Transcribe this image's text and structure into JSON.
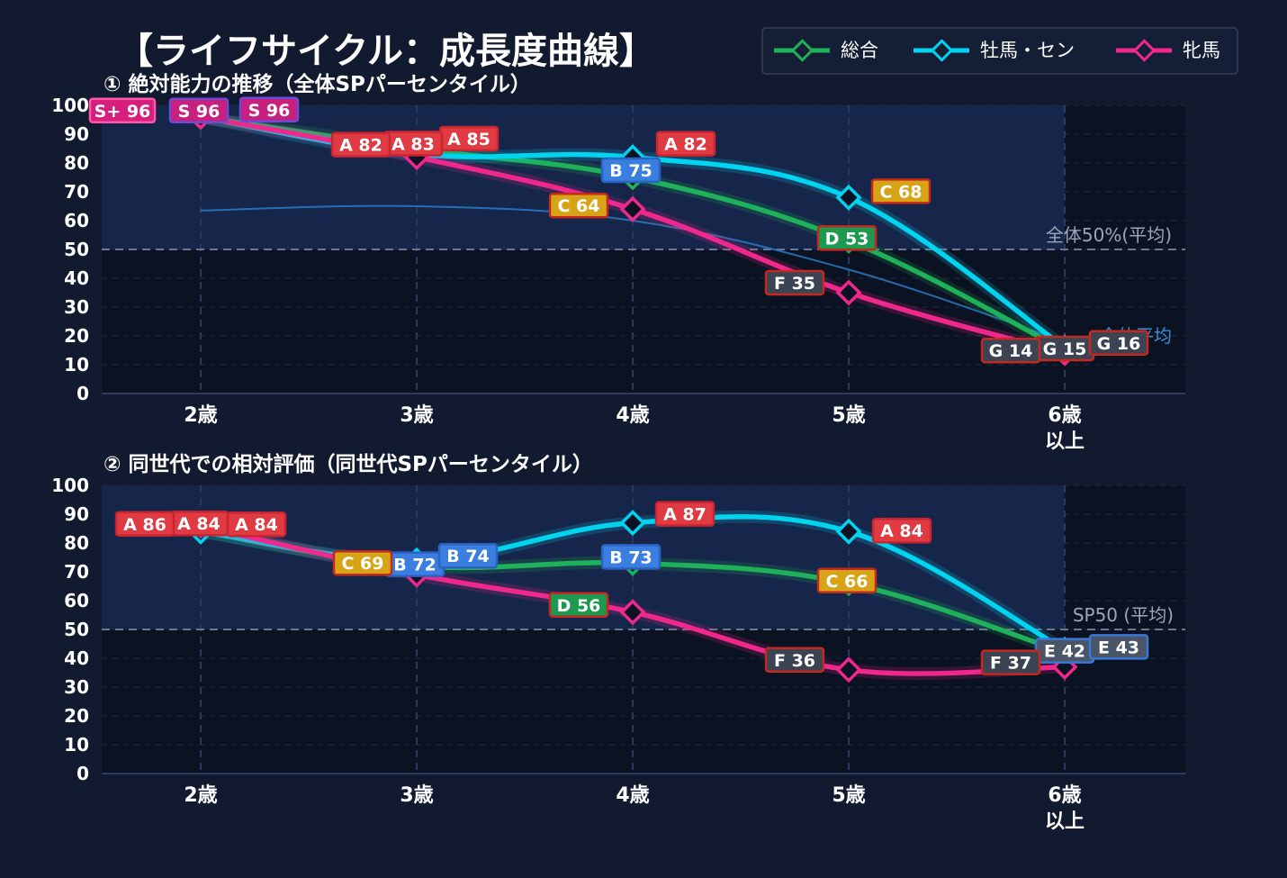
{
  "title": "【ライフサイクル：成長度曲線】",
  "legend": [
    {
      "name": "総合",
      "color": "#1fb05a"
    },
    {
      "name": "牡馬・セン",
      "color": "#00d4f0"
    },
    {
      "name": "牝馬",
      "color": "#f0288c"
    }
  ],
  "chart_data": [
    {
      "type": "line",
      "title": "① 絶対能力の推移（全体SPパーセンタイル）",
      "categories": [
        "2歳",
        "3歳",
        "4歳",
        "5歳",
        "6歳\n以上"
      ],
      "ylim": [
        0,
        100
      ],
      "yticks": [
        0,
        10,
        20,
        30,
        40,
        50,
        60,
        70,
        80,
        90,
        100
      ],
      "grid": true,
      "reference_line": {
        "value": 50,
        "label": "全体50%(平均)"
      },
      "average_curve": {
        "name": "全体平均",
        "values": [
          63.5,
          65,
          60,
          43,
          18
        ]
      },
      "series": [
        {
          "name": "総合",
          "values": [
            96,
            85,
            75,
            53,
            15
          ],
          "labels": [
            "S 96",
            "A 85",
            "B 75",
            "D 53",
            "G 15"
          ]
        },
        {
          "name": "牡馬・セン",
          "values": [
            96,
            83,
            82,
            68,
            16
          ],
          "labels": [
            "S 96",
            "A 83",
            "A 82",
            "C 68",
            "G 16"
          ]
        },
        {
          "name": "牝馬",
          "values": [
            96,
            82,
            64,
            35,
            14
          ],
          "labels": [
            "S+ 96",
            "A 82",
            "C 64",
            "F 35",
            "G 14"
          ]
        }
      ]
    },
    {
      "type": "line",
      "title": "② 同世代での相対評価（同世代SPパーセンタイル）",
      "categories": [
        "2歳",
        "3歳",
        "4歳",
        "5歳",
        "6歳\n以上"
      ],
      "ylim": [
        0,
        100
      ],
      "yticks": [
        0,
        10,
        20,
        30,
        40,
        50,
        60,
        70,
        80,
        90,
        100
      ],
      "grid": true,
      "reference_line": {
        "value": 50,
        "label": "SP50 (平均)"
      },
      "series": [
        {
          "name": "総合",
          "values": [
            84,
            72,
            73,
            66,
            42
          ],
          "labels": [
            "A 84",
            "B 72",
            "B 73",
            "C 66",
            "E 42"
          ]
        },
        {
          "name": "牡馬・セン",
          "values": [
            84,
            74,
            87,
            84,
            43
          ],
          "labels": [
            "A 84",
            "B 74",
            "A 87",
            "A 84",
            "E 43"
          ]
        },
        {
          "name": "牝馬",
          "values": [
            86,
            69,
            56,
            36,
            37
          ],
          "labels": [
            "A 86",
            "C 69",
            "D 56",
            "F 36",
            "F 37"
          ]
        }
      ]
    }
  ]
}
